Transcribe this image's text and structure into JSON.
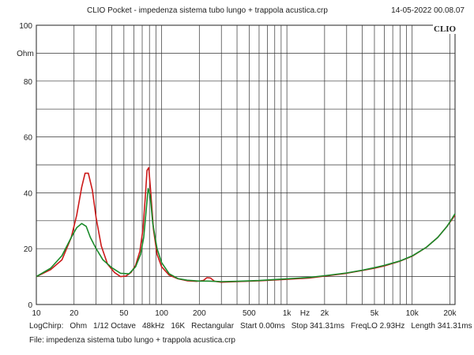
{
  "header": {
    "title": "CLIO Pocket - impedenza sistema tubo lungo + trappola acustica.crp",
    "timestamp": "14-05-2022 00.08.07",
    "brand": "CLIO"
  },
  "chart_data": {
    "type": "line",
    "title": "CLIO Pocket - impedenza sistema tubo lungo + trappola acustica.crp",
    "xlabel": "Hz",
    "ylabel": "Ohm",
    "xscale": "log",
    "xlim": [
      10,
      22000
    ],
    "ylim": [
      0,
      100
    ],
    "grid": true,
    "x_ticks": [
      {
        "value": 10,
        "label": "10"
      },
      {
        "value": 20,
        "label": "20"
      },
      {
        "value": 50,
        "label": "50"
      },
      {
        "value": 100,
        "label": "100"
      },
      {
        "value": 200,
        "label": "200"
      },
      {
        "value": 500,
        "label": "500"
      },
      {
        "value": 1000,
        "label": "1k"
      },
      {
        "value": 2000,
        "label": "2k"
      },
      {
        "value": 5000,
        "label": "5k"
      },
      {
        "value": 10000,
        "label": "10k"
      },
      {
        "value": 20000,
        "label": "20k"
      }
    ],
    "y_ticks": [
      {
        "value": 0,
        "label": "0"
      },
      {
        "value": 20,
        "label": "20"
      },
      {
        "value": 40,
        "label": "40"
      },
      {
        "value": 60,
        "label": "60"
      },
      {
        "value": 80,
        "label": "80"
      },
      {
        "value": 100,
        "label": "100"
      }
    ],
    "series": [
      {
        "name": "red",
        "color": "#cc1a1a",
        "x": [
          10,
          13,
          16,
          19,
          21,
          23,
          24.5,
          26,
          28,
          30,
          33,
          37,
          42,
          47,
          52,
          57,
          62,
          67,
          71,
          74,
          76.5,
          79,
          82,
          86,
          92,
          100,
          115,
          135,
          160,
          190,
          215,
          230,
          245,
          265,
          300,
          400,
          600,
          1000,
          1500,
          2000,
          3000,
          4000,
          5000,
          6000,
          8000,
          10000,
          13000,
          16000,
          19000,
          22000
        ],
        "y": [
          10,
          12.5,
          16,
          24,
          32,
          42,
          47,
          47,
          41,
          31,
          21,
          14.5,
          11.5,
          10,
          10.2,
          11.5,
          14,
          19,
          27,
          38,
          48,
          49,
          40,
          27,
          18,
          13.5,
          10.5,
          9.2,
          8.5,
          8.3,
          8.6,
          9.6,
          9.5,
          8.3,
          8.0,
          8.2,
          8.5,
          9.0,
          9.5,
          10.2,
          11.2,
          12.2,
          13.0,
          13.8,
          15.5,
          17.3,
          20.5,
          24.0,
          28.0,
          32.0
        ]
      },
      {
        "name": "green",
        "color": "#1a8a2a",
        "x": [
          10,
          13,
          16,
          19,
          21,
          23,
          25,
          27,
          30,
          34,
          40,
          47,
          55,
          62,
          68,
          72,
          75,
          78,
          81,
          85,
          92,
          100,
          115,
          135,
          160,
          200,
          230,
          260,
          300,
          400,
          600,
          1000,
          1500,
          2000,
          3000,
          4000,
          5000,
          6000,
          8000,
          10000,
          13000,
          16000,
          19000,
          22000
        ],
        "y": [
          10,
          13,
          17.5,
          24,
          27.5,
          29,
          28,
          24,
          20,
          16,
          13.2,
          11.2,
          11,
          13.5,
          18,
          24,
          33,
          41.5,
          39,
          29,
          20,
          15,
          11,
          9.3,
          8.7,
          8.4,
          8.4,
          8.3,
          8.2,
          8.3,
          8.6,
          9.2,
          9.7,
          10.3,
          11.3,
          12.3,
          13.2,
          14.0,
          15.6,
          17.4,
          20.5,
          24.0,
          28.0,
          32.5
        ]
      }
    ]
  },
  "footer": {
    "params": [
      "LogChirp:",
      "Ohm",
      "1/12 Octave",
      "48kHz",
      "16K",
      "Rectangular",
      "Start 0.00ms",
      "Stop 341.31ms",
      "FreqLO 2.93Hz",
      "Length 341.31ms"
    ],
    "file": "File: impedenza sistema tubo lungo + trappola acustica.crp"
  }
}
